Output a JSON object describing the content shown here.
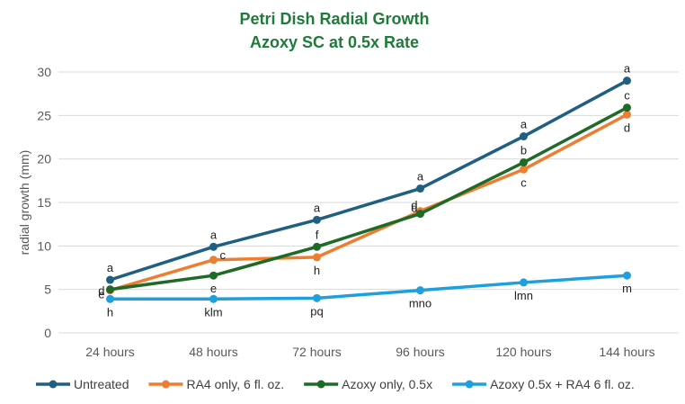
{
  "chart_data": {
    "type": "line",
    "title_lines": [
      "Petri Dish Radial Growth",
      "Azoxy SC at 0.5x Rate"
    ],
    "title_color": "#1e7b3a",
    "xlabel": "",
    "ylabel": "radial growth (mm)",
    "ylim": [
      0,
      30
    ],
    "yticks": [
      0,
      5,
      10,
      15,
      20,
      25,
      30
    ],
    "categories": [
      "24 hours",
      "48 hours",
      "72 hours",
      "96 hours",
      "120 hours",
      "144 hours"
    ],
    "grid": true,
    "legend_position": "bottom",
    "series": [
      {
        "name": "Untreated",
        "color": "#1f5f82",
        "values": [
          6.1,
          9.9,
          13.0,
          16.6,
          22.6,
          29.0
        ],
        "labels": [
          "a",
          "a",
          "a",
          "a",
          "a",
          "a"
        ],
        "label_pos": [
          "above",
          "above",
          "above",
          "above",
          "above",
          "above"
        ]
      },
      {
        "name": "RA4 only, 6 fl. oz.",
        "color": "#ed7d31",
        "values": [
          4.9,
          8.4,
          8.7,
          14.0,
          18.8,
          25.1
        ],
        "labels": [
          "d",
          "c",
          "h",
          "d",
          "c",
          "d"
        ],
        "label_pos": [
          "left",
          "above-right",
          "below",
          "above-left",
          "below",
          "below"
        ]
      },
      {
        "name": "Azoxy only, 0.5x",
        "color": "#1e6b27",
        "values": [
          5.0,
          6.6,
          9.9,
          13.7,
          19.6,
          25.9
        ],
        "labels": [
          "e",
          "e",
          "f",
          "d",
          "b",
          "c"
        ],
        "label_pos": [
          "left-low",
          "below",
          "above",
          "above-left",
          "above",
          "above"
        ]
      },
      {
        "name": "Azoxy 0.5x + RA4 6 fl. oz.",
        "color": "#1fa0dc",
        "values": [
          3.9,
          3.9,
          4.0,
          4.9,
          5.8,
          6.6
        ],
        "labels": [
          "h",
          "klm",
          "pq",
          "mno",
          "lmn",
          "m"
        ],
        "label_pos": [
          "below",
          "below",
          "below",
          "below",
          "below",
          "below"
        ]
      }
    ]
  }
}
